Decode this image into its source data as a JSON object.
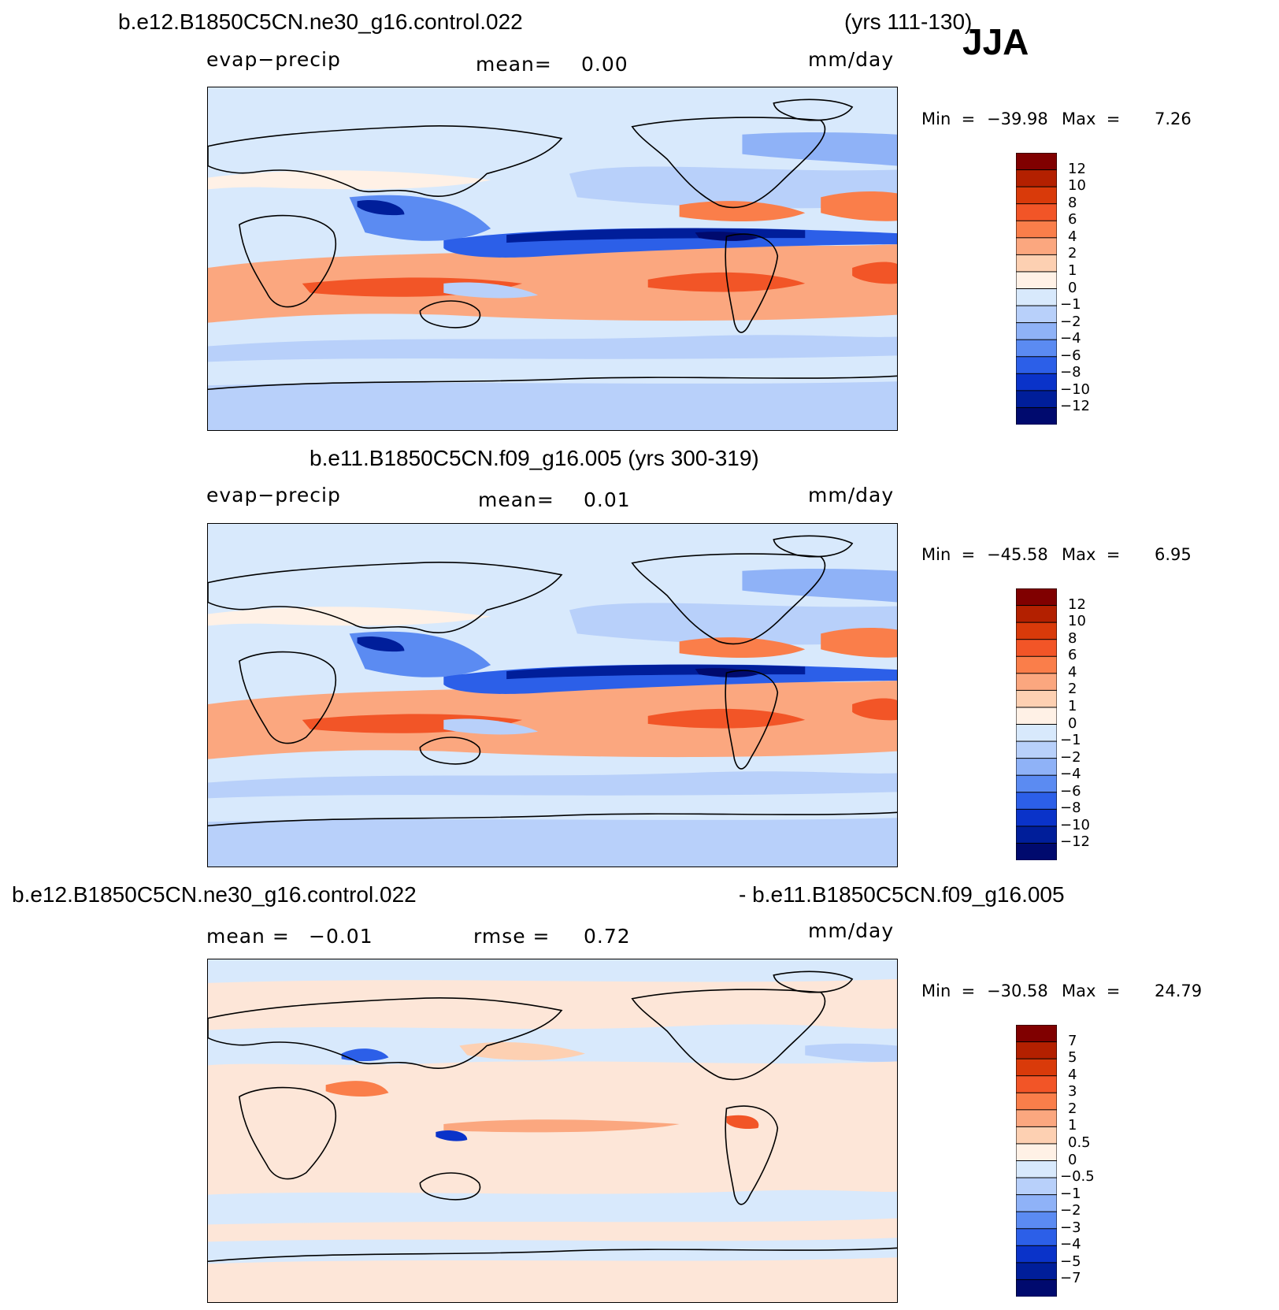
{
  "header": {
    "case1": "b.e12.B1850C5CN.ne30_g16.control.022",
    "years1": "(yrs 111-130)",
    "season": "JJA"
  },
  "panels": [
    {
      "title": "",
      "left_label": "evap−precip",
      "stat1_label": "mean=",
      "stat1_value": "0.00",
      "stat2_label": "",
      "stat2_value": "",
      "units": "mm/day",
      "min_label": "Min  =",
      "min_value": "−39.98",
      "max_label": "Max  =",
      "max_value": "7.26",
      "colorbar_ticks": [
        "12",
        "10",
        "8",
        "6",
        "4",
        "2",
        "1",
        "0",
        "−1",
        "−2",
        "−4",
        "−6",
        "−8",
        "−10",
        "−12"
      ]
    },
    {
      "title": "b.e11.B1850C5CN.f09_g16.005 (yrs 300-319)",
      "left_label": "evap−precip",
      "stat1_label": "mean=",
      "stat1_value": "0.01",
      "stat2_label": "",
      "stat2_value": "",
      "units": "mm/day",
      "min_label": "Min  =",
      "min_value": "−45.58",
      "max_label": "Max  =",
      "max_value": "6.95",
      "colorbar_ticks": [
        "12",
        "10",
        "8",
        "6",
        "4",
        "2",
        "1",
        "0",
        "−1",
        "−2",
        "−4",
        "−6",
        "−8",
        "−10",
        "−12"
      ]
    },
    {
      "title_left": "b.e12.B1850C5CN.ne30_g16.control.022",
      "title_right": "- b.e11.B1850C5CN.f09_g16.005",
      "stat1_label": "mean =",
      "stat1_value": "−0.01",
      "stat2_label": "rmse =",
      "stat2_value": "0.72",
      "units": "mm/day",
      "min_label": "Min  =",
      "min_value": "−30.58",
      "max_label": "Max  =",
      "max_value": "24.79",
      "colorbar_ticks": [
        "7",
        "5",
        "4",
        "3",
        "2",
        "1",
        "0.5",
        "0",
        "−0.5",
        "−1",
        "−2",
        "−3",
        "−4",
        "−5",
        "−7"
      ]
    }
  ],
  "colors": {
    "palette": [
      "#800000",
      "#b32000",
      "#d93a0a",
      "#f25527",
      "#fa7e4a",
      "#fba77f",
      "#fdd0b2",
      "#fff1e6",
      "#d8e9fc",
      "#b8d0fa",
      "#8fb2f7",
      "#5b8bf2",
      "#2c5fe8",
      "#0a33c9",
      "#001e9a",
      "#000a6e"
    ],
    "ocean_base_mean": "#d8e9fc",
    "ocean_base_diff": "#fde6d8",
    "coast": "#000000"
  }
}
